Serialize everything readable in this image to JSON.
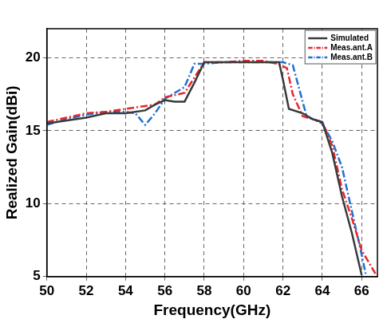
{
  "chart_data": {
    "type": "line",
    "x_label": "Frequency(GHz)",
    "y_label": "Realized Gain(dBi)",
    "xlim": [
      50,
      66.8
    ],
    "xticks": [
      50,
      52,
      54,
      56,
      58,
      60,
      62,
      64,
      66
    ],
    "ylim": [
      5,
      22
    ],
    "yticks": [
      5,
      10,
      15,
      20
    ],
    "grid": true,
    "legend": "top-right",
    "series": [
      {
        "name": "Simulated",
        "color": "#3a3a3a",
        "line_style": "solid",
        "x": [
          50,
          52,
          53,
          54,
          55,
          55.5,
          56,
          56.5,
          57,
          57.5,
          58,
          59,
          60,
          61,
          61.8,
          62,
          62.3,
          63,
          63.5,
          64,
          64.5,
          65,
          65.5,
          66
        ],
        "values": [
          15.5,
          15.9,
          16.2,
          16.2,
          16.4,
          16.8,
          17.1,
          17.0,
          17.0,
          18.3,
          19.7,
          19.7,
          19.7,
          19.7,
          19.7,
          18.5,
          16.5,
          16.2,
          15.8,
          15.6,
          13.5,
          10.5,
          8.0,
          5.1
        ]
      },
      {
        "name": "Meas.ant.A",
        "color": "#e8262b",
        "line_style": "dashdot",
        "x": [
          50,
          51,
          52,
          53,
          54,
          55,
          55.5,
          56,
          57,
          58,
          59,
          60,
          61,
          61.7,
          62.2,
          62.5,
          63,
          64,
          64.5,
          65,
          65.5,
          66,
          66.7
        ],
        "values": [
          15.6,
          15.9,
          16.2,
          16.3,
          16.5,
          16.7,
          16.8,
          17.3,
          17.6,
          19.7,
          19.7,
          19.8,
          19.8,
          19.6,
          19.3,
          17.5,
          16.0,
          15.6,
          14.0,
          11.0,
          9.0,
          6.8,
          5.2
        ]
      },
      {
        "name": "Meas.ant.B",
        "color": "#1f6fd1",
        "line_style": "dashdot",
        "x": [
          50,
          51,
          52,
          53,
          54,
          54.5,
          55,
          55.5,
          56,
          57,
          57.5,
          58,
          59,
          60,
          61,
          62,
          62.5,
          62.8,
          63.2,
          64,
          64.5,
          65,
          65.5,
          66,
          66.2
        ],
        "values": [
          15.4,
          15.8,
          16.1,
          16.3,
          16.3,
          16.2,
          15.4,
          16.2,
          17.2,
          18.0,
          19.6,
          19.6,
          19.7,
          19.7,
          19.7,
          19.7,
          19.5,
          18.0,
          16.0,
          15.5,
          14.3,
          12.5,
          9.5,
          6.5,
          5.2
        ]
      }
    ]
  }
}
